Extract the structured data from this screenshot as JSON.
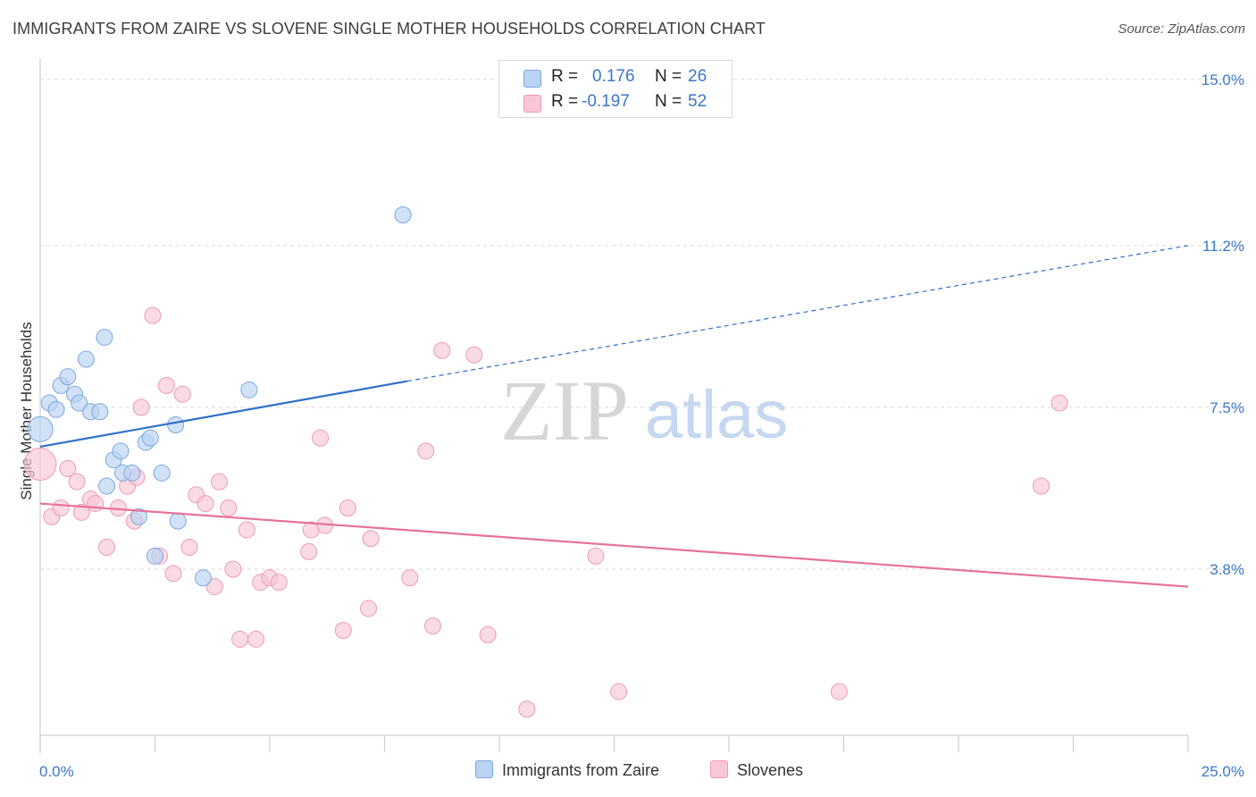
{
  "header": {
    "title": "IMMIGRANTS FROM ZAIRE VS SLOVENE SINGLE MOTHER HOUSEHOLDS CORRELATION CHART",
    "source": "Source: ZipAtlas.com"
  },
  "watermark": {
    "zip": "ZIP",
    "atlas": "atlas"
  },
  "legend_top": {
    "rows": [
      {
        "r_label": "R =",
        "r_value": "0.176",
        "n_label": "N =",
        "n_value": "26"
      },
      {
        "r_label": "R =",
        "r_value": "-0.197",
        "n_label": "N =",
        "n_value": "52"
      }
    ]
  },
  "legend_bottom": {
    "items": [
      {
        "label": "Immigrants from Zaire"
      },
      {
        "label": "Slovenes"
      }
    ]
  },
  "colors": {
    "blue_fill": "#b9d3f2",
    "blue_stroke": "#7aa7de",
    "blue_line": "#2f6fcc",
    "pink_fill": "#f8c7d6",
    "pink_stroke": "#ee9ab4",
    "pink_line": "#e8719a",
    "tick_text": "#3a78c8",
    "grid": "#d9d9d9"
  },
  "chart_data": {
    "type": "scatter",
    "title": "IMMIGRANTS FROM ZAIRE VS SLOVENE SINGLE MOTHER HOUSEHOLDS CORRELATION CHART",
    "xlabel": "",
    "ylabel": "Single Mother Households",
    "xlim": [
      0,
      25
    ],
    "ylim": [
      0.0,
      15.2
    ],
    "x_tick_labels": [
      "0.0%",
      "25.0%"
    ],
    "y_ticks": [
      3.8,
      7.5,
      11.2,
      15.0
    ],
    "y_tick_labels": [
      "3.8%",
      "7.5%",
      "11.2%",
      "15.0%"
    ],
    "grid": "horizontal dashed",
    "legend_position": "top-center",
    "series": [
      {
        "name": "Immigrants from Zaire",
        "r": 0.176,
        "n": 26,
        "trend": {
          "x0": 0.0,
          "y0": 6.6,
          "x1": 8.0,
          "y1": 8.1,
          "dashed_to_x": 25.0,
          "dashed_to_y": 11.2
        },
        "points": [
          [
            0.0,
            7.0,
            14
          ],
          [
            0.2,
            7.6,
            9
          ],
          [
            0.35,
            7.45,
            9
          ],
          [
            0.45,
            8.0,
            9
          ],
          [
            0.6,
            8.2,
            9
          ],
          [
            0.75,
            7.8,
            9
          ],
          [
            0.85,
            7.6,
            9
          ],
          [
            1.0,
            8.6,
            9
          ],
          [
            1.1,
            7.4,
            9
          ],
          [
            1.3,
            7.4,
            9
          ],
          [
            1.4,
            9.1,
            9
          ],
          [
            1.45,
            5.7,
            9
          ],
          [
            1.6,
            6.3,
            9
          ],
          [
            1.75,
            6.5,
            9
          ],
          [
            1.8,
            6.0,
            9
          ],
          [
            2.0,
            6.0,
            9
          ],
          [
            2.15,
            5.0,
            9
          ],
          [
            2.3,
            6.7,
            9
          ],
          [
            2.4,
            6.8,
            9
          ],
          [
            2.5,
            4.1,
            9
          ],
          [
            2.65,
            6.0,
            9
          ],
          [
            2.95,
            7.1,
            9
          ],
          [
            3.0,
            4.9,
            9
          ],
          [
            3.55,
            3.6,
            9
          ],
          [
            4.55,
            7.9,
            9
          ],
          [
            7.9,
            11.9,
            9
          ]
        ]
      },
      {
        "name": "Slovenes",
        "r": -0.197,
        "n": 52,
        "trend": {
          "x0": 0.0,
          "y0": 5.3,
          "x1": 25.0,
          "y1": 3.4
        },
        "points": [
          [
            0.0,
            6.2,
            18
          ],
          [
            0.25,
            5.0,
            9
          ],
          [
            0.45,
            5.2,
            9
          ],
          [
            0.6,
            6.1,
            9
          ],
          [
            0.8,
            5.8,
            9
          ],
          [
            0.9,
            5.1,
            9
          ],
          [
            1.1,
            5.4,
            9
          ],
          [
            1.2,
            5.3,
            9
          ],
          [
            1.45,
            4.3,
            9
          ],
          [
            1.7,
            5.2,
            9
          ],
          [
            1.9,
            5.7,
            9
          ],
          [
            2.05,
            4.9,
            9
          ],
          [
            2.1,
            5.9,
            9
          ],
          [
            2.2,
            7.5,
            9
          ],
          [
            2.45,
            9.6,
            9
          ],
          [
            2.6,
            4.1,
            9
          ],
          [
            2.75,
            8.0,
            9
          ],
          [
            2.9,
            3.7,
            9
          ],
          [
            3.1,
            7.8,
            9
          ],
          [
            3.25,
            4.3,
            9
          ],
          [
            3.4,
            5.5,
            9
          ],
          [
            3.6,
            5.3,
            9
          ],
          [
            3.8,
            3.4,
            9
          ],
          [
            3.9,
            5.8,
            9
          ],
          [
            4.1,
            5.2,
            9
          ],
          [
            4.2,
            3.8,
            9
          ],
          [
            4.35,
            2.2,
            9
          ],
          [
            4.5,
            4.7,
            9
          ],
          [
            4.7,
            2.2,
            9
          ],
          [
            4.8,
            3.5,
            9
          ],
          [
            5.0,
            3.6,
            9
          ],
          [
            5.2,
            3.5,
            9
          ],
          [
            5.85,
            4.2,
            9
          ],
          [
            5.9,
            4.7,
            9
          ],
          [
            6.1,
            6.8,
            9
          ],
          [
            6.2,
            4.8,
            9
          ],
          [
            6.6,
            2.4,
            9
          ],
          [
            6.7,
            5.2,
            9
          ],
          [
            7.15,
            2.9,
            9
          ],
          [
            7.2,
            4.5,
            9
          ],
          [
            8.05,
            3.6,
            9
          ],
          [
            8.4,
            6.5,
            9
          ],
          [
            8.55,
            2.5,
            9
          ],
          [
            8.75,
            8.8,
            9
          ],
          [
            9.45,
            8.7,
            9
          ],
          [
            9.75,
            2.3,
            9
          ],
          [
            10.6,
            0.6,
            9
          ],
          [
            12.1,
            4.1,
            9
          ],
          [
            12.6,
            1.0,
            9
          ],
          [
            17.4,
            1.0,
            9
          ],
          [
            21.8,
            5.7,
            9
          ],
          [
            22.2,
            7.6,
            9
          ]
        ]
      }
    ]
  }
}
